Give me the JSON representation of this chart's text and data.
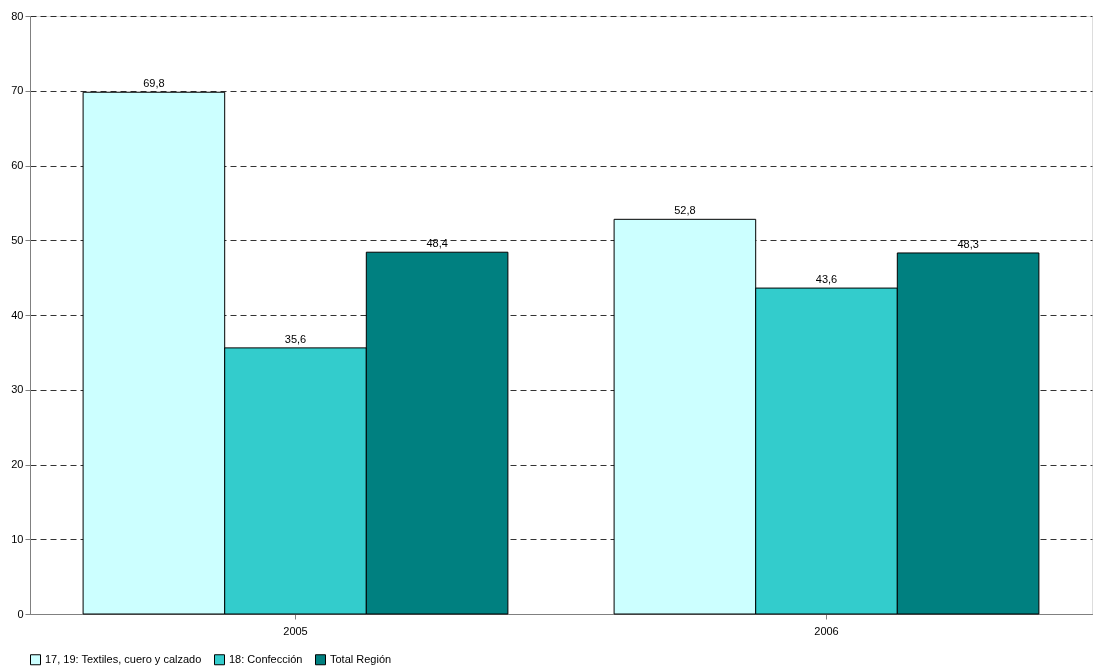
{
  "chart_data": {
    "type": "bar",
    "categories": [
      "2005",
      "2006"
    ],
    "series": [
      {
        "name": "17, 19: Textiles, cuero y calzado",
        "color": "#ccffff",
        "values": [
          69.8,
          52.8
        ],
        "value_labels": [
          "69,8",
          "52,8"
        ]
      },
      {
        "name": "18: Confección",
        "color": "#33cccc",
        "values": [
          35.6,
          43.6
        ],
        "value_labels": [
          "35,6",
          "43,6"
        ]
      },
      {
        "name": "Total Región",
        "color": "#008080",
        "values": [
          48.4,
          48.3
        ],
        "value_labels": [
          "48,4",
          "48,3"
        ]
      }
    ],
    "ylim": [
      0,
      80
    ],
    "yticks": [
      0,
      10,
      20,
      30,
      40,
      50,
      60,
      70,
      80
    ],
    "grid": "y",
    "legend": "bottom"
  }
}
